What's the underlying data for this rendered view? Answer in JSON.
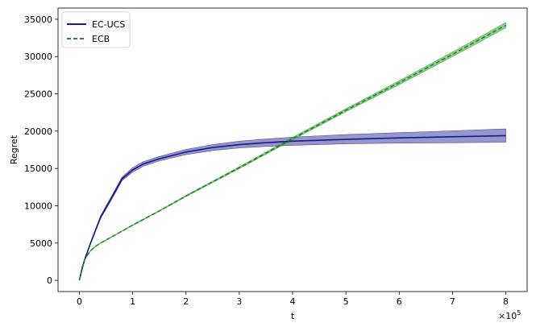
{
  "chart_data": {
    "type": "line",
    "title": "",
    "xlabel": "t",
    "ylabel": "Regret",
    "x_multiplier_label": "×10",
    "x_multiplier_exp": "5",
    "xlim": [
      -0.4,
      8.4
    ],
    "ylim": [
      -1500,
      36500
    ],
    "x_ticks": [
      0,
      1,
      2,
      3,
      4,
      5,
      6,
      7,
      8
    ],
    "y_ticks": [
      0,
      5000,
      10000,
      15000,
      20000,
      25000,
      30000,
      35000
    ],
    "legend_position": "top-left",
    "grid": false,
    "series": [
      {
        "name": "EC-UCS",
        "style": "solid",
        "color": "#1a1a80",
        "band_color": "#4040a8",
        "x": [
          0,
          0.05,
          0.1,
          0.2,
          0.4,
          0.6,
          0.8,
          1.0,
          1.2,
          1.5,
          2.0,
          2.5,
          3.0,
          3.5,
          4.0,
          5.0,
          6.0,
          7.0,
          8.0
        ],
        "y": [
          0,
          1500,
          2800,
          4800,
          8500,
          11000,
          13600,
          14800,
          15600,
          16300,
          17200,
          17800,
          18200,
          18450,
          18650,
          18900,
          19100,
          19250,
          19400
        ],
        "lower": [
          0,
          1450,
          2700,
          4650,
          8300,
          10750,
          13350,
          14500,
          15300,
          16000,
          16850,
          17400,
          17750,
          17950,
          18100,
          18300,
          18400,
          18450,
          18500
        ],
        "upper": [
          0,
          1550,
          2900,
          4950,
          8700,
          11250,
          13850,
          15100,
          15900,
          16600,
          17550,
          18200,
          18650,
          18950,
          19200,
          19550,
          19800,
          20050,
          20300
        ]
      },
      {
        "name": "ECB",
        "style": "dashed",
        "color": "#1a8a1a",
        "band_color": "#3aa83a",
        "x": [
          0,
          0.05,
          0.1,
          0.2,
          0.3,
          0.4,
          0.6,
          0.8,
          1.0,
          1.5,
          2.0,
          2.5,
          3.0,
          4.0,
          5.0,
          6.0,
          7.0,
          8.0
        ],
        "y": [
          0,
          1700,
          2800,
          3900,
          4550,
          5000,
          5800,
          6600,
          7400,
          9300,
          11300,
          13200,
          15100,
          19000,
          22800,
          26500,
          30300,
          34200
        ],
        "lower": [
          0,
          1680,
          2770,
          3860,
          4510,
          4960,
          5760,
          6560,
          7360,
          9240,
          11220,
          13100,
          14980,
          18840,
          22600,
          26250,
          30000,
          33850
        ],
        "upper": [
          0,
          1720,
          2830,
          3940,
          4590,
          5040,
          5840,
          6640,
          7440,
          9360,
          11380,
          13300,
          15220,
          19160,
          23000,
          26750,
          30600,
          34550
        ]
      }
    ]
  }
}
